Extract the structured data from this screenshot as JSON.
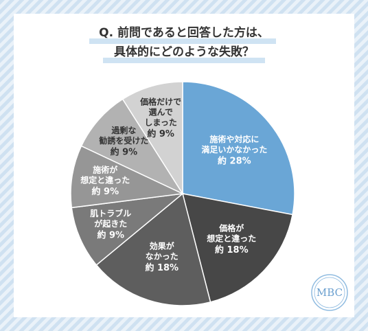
{
  "chart_data": {
    "type": "pie",
    "title": [
      "Q. 前問であると回答した方は、",
      "具体的にどのような失敗？"
    ],
    "categories": [
      "施術や対応に\n満足いかなかった",
      "価格が\n想定と違った",
      "効果が\nなかった",
      "肌トラブル\nが起きた",
      "施術が\n想定と違った",
      "過剰な\n勧誘を受けた",
      "価格だけで\n選んで\nしまった"
    ],
    "values": [
      28,
      18,
      18,
      9,
      9,
      9,
      9
    ],
    "value_labels": [
      "約 28%",
      "約 18%",
      "約 18%",
      "約 9%",
      "約 9%",
      "約 9%",
      "約 9%"
    ],
    "colors": [
      "#6aa6d6",
      "#474747",
      "#5e5e5e",
      "#7a7a7a",
      "#969696",
      "#b2b2b2",
      "#d2d2d2"
    ]
  },
  "logo": "MBC"
}
